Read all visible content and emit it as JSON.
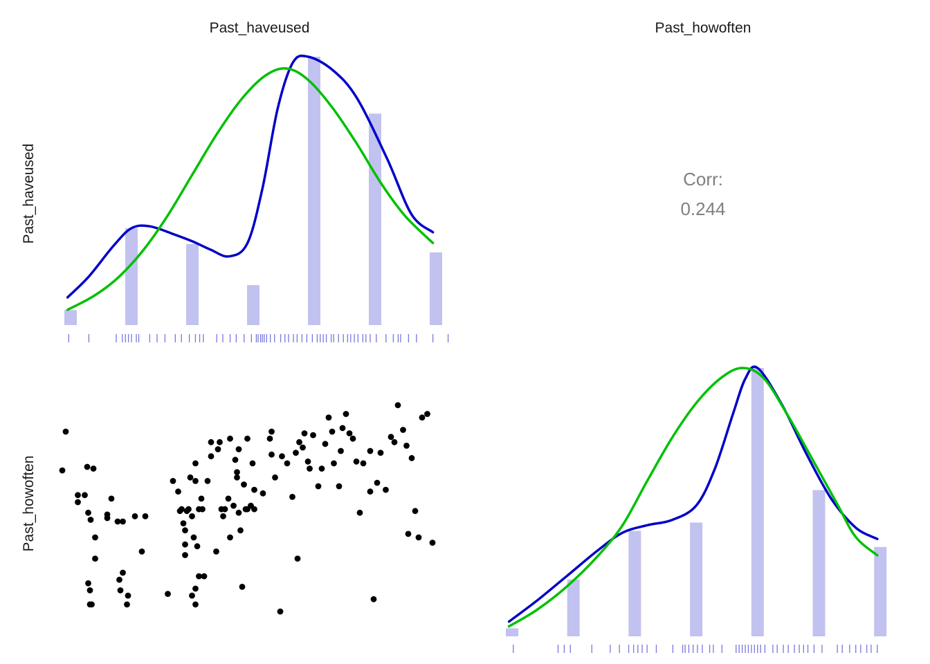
{
  "chart_data": {
    "type": "scatter",
    "variables": [
      "Past_haveused",
      "Past_howoften"
    ],
    "colors": {
      "bars": "#c2c2f0",
      "rug": "#7777dd",
      "kde_blue": "#0000c8",
      "kde_green": "#00c000",
      "points": "#000000",
      "corr_text": "#808080",
      "label_text": "#1a1a1a"
    },
    "corr": {
      "label": "Corr:",
      "value": "0.244"
    },
    "diag_1": {
      "bar_levels": [
        1,
        2,
        3,
        4,
        5,
        6,
        7
      ],
      "bar_heights": [
        0.056,
        0.361,
        0.302,
        0.149,
        1.0,
        0.788,
        0.271
      ],
      "blue_kde": [
        [
          0.95,
          0.103
        ],
        [
          1.3,
          0.181
        ],
        [
          1.7,
          0.294
        ],
        [
          2.0,
          0.361
        ],
        [
          2.3,
          0.368
        ],
        [
          2.7,
          0.338
        ],
        [
          3.0,
          0.312
        ],
        [
          3.3,
          0.281
        ],
        [
          3.6,
          0.256
        ],
        [
          3.9,
          0.303
        ],
        [
          4.15,
          0.508
        ],
        [
          4.4,
          0.806
        ],
        [
          4.65,
          0.978
        ],
        [
          4.9,
          1.0
        ],
        [
          5.3,
          0.951
        ],
        [
          5.7,
          0.847
        ],
        [
          6.2,
          0.619
        ],
        [
          6.6,
          0.412
        ],
        [
          6.95,
          0.346
        ]
      ],
      "green_kde": [
        [
          0.95,
          0.057
        ],
        [
          1.4,
          0.111
        ],
        [
          1.8,
          0.181
        ],
        [
          2.2,
          0.281
        ],
        [
          2.6,
          0.41
        ],
        [
          3.0,
          0.561
        ],
        [
          3.4,
          0.711
        ],
        [
          3.8,
          0.84
        ],
        [
          4.2,
          0.93
        ],
        [
          4.55,
          0.956
        ],
        [
          4.9,
          0.914
        ],
        [
          5.3,
          0.81
        ],
        [
          5.7,
          0.676
        ],
        [
          6.1,
          0.528
        ],
        [
          6.5,
          0.405
        ],
        [
          6.95,
          0.306
        ]
      ],
      "rug": [
        0.97,
        1.3,
        1.75,
        1.85,
        1.9,
        1.95,
        2.0,
        2.08,
        2.12,
        2.3,
        2.42,
        2.55,
        2.72,
        2.82,
        2.95,
        3.05,
        3.12,
        3.18,
        3.4,
        3.5,
        3.62,
        3.72,
        3.85,
        3.97,
        4.05,
        4.08,
        4.12,
        4.15,
        4.18,
        4.22,
        4.28,
        4.35,
        4.45,
        4.52,
        4.58,
        4.66,
        4.72,
        4.8,
        4.88,
        4.97,
        5.05,
        5.1,
        5.15,
        5.2,
        5.28,
        5.32,
        5.4,
        5.48,
        5.55,
        5.6,
        5.66,
        5.72,
        5.8,
        5.85,
        5.92,
        6.02,
        6.18,
        6.3,
        6.38,
        6.42,
        6.55,
        6.68,
        6.95,
        7.2
      ]
    },
    "diag_2": {
      "bar_levels": [
        1,
        2,
        3,
        4,
        5,
        6,
        7
      ],
      "bar_heights": [
        0.03,
        0.212,
        0.393,
        0.424,
        1.0,
        0.545,
        0.333
      ],
      "blue_kde": [
        [
          0.95,
          0.055
        ],
        [
          1.4,
          0.132
        ],
        [
          1.9,
          0.226
        ],
        [
          2.4,
          0.321
        ],
        [
          2.8,
          0.386
        ],
        [
          3.2,
          0.414
        ],
        [
          3.6,
          0.433
        ],
        [
          4.0,
          0.487
        ],
        [
          4.3,
          0.622
        ],
        [
          4.6,
          0.829
        ],
        [
          4.8,
          0.96
        ],
        [
          5.0,
          1.0
        ],
        [
          5.4,
          0.862
        ],
        [
          5.8,
          0.678
        ],
        [
          6.2,
          0.513
        ],
        [
          6.6,
          0.405
        ],
        [
          6.95,
          0.363
        ]
      ],
      "green_kde": [
        [
          0.95,
          0.037
        ],
        [
          1.4,
          0.098
        ],
        [
          1.9,
          0.187
        ],
        [
          2.4,
          0.3
        ],
        [
          2.8,
          0.414
        ],
        [
          3.2,
          0.578
        ],
        [
          3.6,
          0.737
        ],
        [
          4.0,
          0.869
        ],
        [
          4.4,
          0.962
        ],
        [
          4.75,
          1.0
        ],
        [
          5.1,
          0.962
        ],
        [
          5.5,
          0.82
        ],
        [
          5.9,
          0.657
        ],
        [
          6.3,
          0.492
        ],
        [
          6.6,
          0.37
        ],
        [
          6.95,
          0.302
        ]
      ],
      "rug": [
        1.02,
        1.75,
        1.85,
        1.95,
        2.3,
        2.6,
        2.75,
        2.9,
        2.98,
        3.05,
        3.12,
        3.2,
        3.35,
        3.62,
        3.78,
        3.82,
        3.88,
        3.95,
        4.02,
        4.1,
        4.22,
        4.28,
        4.42,
        4.65,
        4.7,
        4.75,
        4.8,
        4.85,
        4.9,
        4.95,
        5.0,
        5.05,
        5.12,
        5.25,
        5.32,
        5.42,
        5.5,
        5.6,
        5.68,
        5.75,
        5.82,
        5.92,
        6.05,
        6.3,
        6.38,
        6.5,
        6.6,
        6.68,
        6.78,
        6.85,
        6.95
      ]
    },
    "scatter": [
      [
        1.0,
        5.4
      ],
      [
        1.1,
        6.5
      ],
      [
        1.45,
        4.5
      ],
      [
        1.45,
        4.7
      ],
      [
        1.65,
        4.7
      ],
      [
        1.75,
        4.2
      ],
      [
        1.75,
        2.2
      ],
      [
        1.8,
        2.0
      ],
      [
        1.8,
        1.6
      ],
      [
        1.82,
        4.0
      ],
      [
        1.72,
        5.5
      ],
      [
        1.9,
        5.45
      ],
      [
        1.85,
        1.6
      ],
      [
        1.95,
        3.5
      ],
      [
        1.95,
        2.9
      ],
      [
        2.3,
        4.15
      ],
      [
        2.3,
        4.05
      ],
      [
        2.42,
        4.6
      ],
      [
        2.6,
        3.95
      ],
      [
        2.65,
        2.3
      ],
      [
        2.68,
        2.0
      ],
      [
        2.75,
        2.5
      ],
      [
        2.75,
        3.95
      ],
      [
        2.87,
        1.6
      ],
      [
        2.9,
        1.85
      ],
      [
        3.1,
        4.1
      ],
      [
        3.3,
        3.1
      ],
      [
        3.4,
        4.1
      ],
      [
        4.05,
        1.9
      ],
      [
        4.2,
        5.1
      ],
      [
        4.35,
        4.8
      ],
      [
        4.4,
        4.25
      ],
      [
        4.45,
        4.3
      ],
      [
        4.5,
        3.9
      ],
      [
        4.55,
        3.7
      ],
      [
        4.55,
        3.3
      ],
      [
        4.55,
        3.0
      ],
      [
        4.6,
        4.25
      ],
      [
        4.65,
        4.3
      ],
      [
        4.7,
        5.2
      ],
      [
        4.75,
        1.85
      ],
      [
        4.75,
        4.1
      ],
      [
        4.8,
        3.5
      ],
      [
        4.85,
        1.6
      ],
      [
        4.85,
        2.05
      ],
      [
        4.85,
        5.6
      ],
      [
        4.85,
        5.1
      ],
      [
        4.9,
        3.25
      ],
      [
        4.95,
        4.3
      ],
      [
        4.95,
        2.4
      ],
      [
        5.02,
        4.6
      ],
      [
        5.05,
        4.3
      ],
      [
        5.1,
        2.4
      ],
      [
        5.2,
        5.1
      ],
      [
        5.3,
        5.8
      ],
      [
        5.3,
        6.2
      ],
      [
        5.45,
        3.1
      ],
      [
        5.5,
        6.0
      ],
      [
        5.55,
        6.2
      ],
      [
        5.6,
        4.3
      ],
      [
        5.65,
        4.1
      ],
      [
        5.7,
        4.3
      ],
      [
        5.8,
        4.6
      ],
      [
        5.85,
        6.3
      ],
      [
        5.85,
        3.5
      ],
      [
        5.95,
        4.4
      ],
      [
        6.0,
        5.7
      ],
      [
        6.05,
        5.35
      ],
      [
        6.05,
        5.2
      ],
      [
        6.1,
        4.2
      ],
      [
        6.15,
        3.7
      ],
      [
        6.1,
        6.0
      ],
      [
        6.2,
        2.1
      ],
      [
        6.25,
        5.0
      ],
      [
        6.3,
        4.3
      ],
      [
        6.35,
        4.3
      ],
      [
        6.45,
        4.4
      ],
      [
        6.55,
        4.3
      ],
      [
        6.35,
        6.3
      ],
      [
        6.5,
        5.6
      ],
      [
        6.55,
        4.85
      ],
      [
        6.8,
        4.75
      ],
      [
        7.05,
        5.85
      ],
      [
        7.0,
        6.3
      ],
      [
        7.05,
        6.5
      ],
      [
        7.15,
        5.2
      ],
      [
        7.35,
        5.8
      ],
      [
        7.3,
        1.4
      ],
      [
        7.5,
        5.6
      ],
      [
        7.65,
        4.65
      ],
      [
        7.75,
        5.9
      ],
      [
        7.8,
        2.9
      ],
      [
        7.85,
        6.2
      ],
      [
        7.95,
        6.05
      ],
      [
        8.0,
        6.45
      ],
      [
        8.1,
        5.65
      ],
      [
        8.15,
        5.45
      ],
      [
        8.25,
        6.4
      ],
      [
        8.4,
        4.95
      ],
      [
        8.5,
        5.45
      ],
      [
        8.6,
        6.15
      ],
      [
        8.7,
        6.9
      ],
      [
        8.8,
        6.5
      ],
      [
        8.85,
        5.6
      ],
      [
        9.0,
        4.95
      ],
      [
        9.05,
        5.95
      ],
      [
        9.1,
        6.6
      ],
      [
        9.2,
        7.0
      ],
      [
        9.3,
        6.45
      ],
      [
        9.4,
        6.3
      ],
      [
        9.5,
        5.65
      ],
      [
        9.6,
        4.2
      ],
      [
        9.7,
        5.6
      ],
      [
        9.9,
        5.95
      ],
      [
        9.9,
        4.8
      ],
      [
        10.0,
        1.75
      ],
      [
        10.1,
        5.05
      ],
      [
        10.2,
        5.9
      ],
      [
        10.35,
        4.85
      ],
      [
        10.5,
        6.35
      ],
      [
        10.6,
        6.2
      ],
      [
        10.7,
        7.25
      ],
      [
        10.85,
        6.55
      ],
      [
        10.95,
        6.1
      ],
      [
        11.0,
        3.6
      ],
      [
        11.1,
        5.75
      ],
      [
        11.2,
        4.25
      ],
      [
        11.3,
        3.5
      ],
      [
        11.4,
        6.9
      ],
      [
        11.55,
        7.0
      ],
      [
        11.7,
        3.35
      ]
    ]
  },
  "labels": {
    "col_1": "Past_haveused",
    "col_2": "Past_howoften",
    "row_1": "Past_haveused",
    "row_2": "Past_howoften"
  }
}
